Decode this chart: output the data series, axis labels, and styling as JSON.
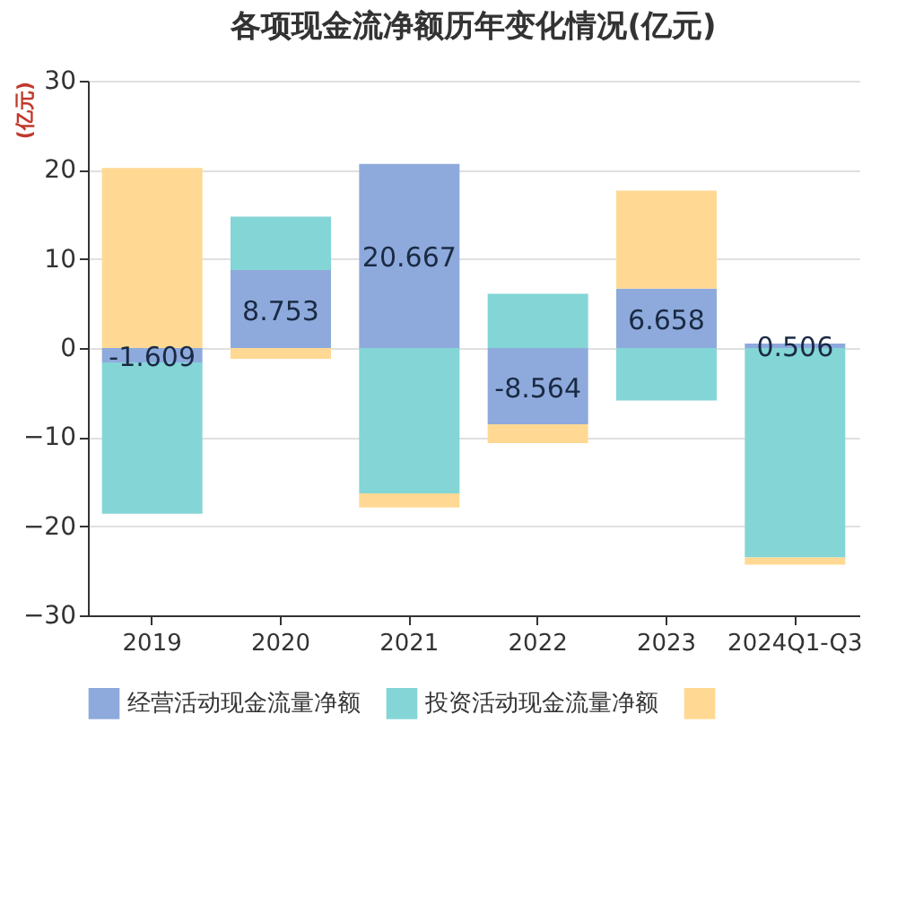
{
  "chart_data": {
    "type": "bar",
    "title": "各项现金流净额历年变化情况(亿元)",
    "ylabel": "(亿元)",
    "stacked": true,
    "categories": [
      "2019",
      "2020",
      "2021",
      "2022",
      "2023",
      "2024Q1-Q3"
    ],
    "series": [
      {
        "name": "经营活动现金流量净额",
        "color": "#8eaadc",
        "values": [
          -1.609,
          8.753,
          20.667,
          -8.564,
          6.658,
          0.506
        ],
        "value_labels": [
          "-1.609",
          "8.753",
          "20.667",
          "-8.564",
          "6.658",
          "0.506"
        ]
      },
      {
        "name": "投资活动现金流量净额",
        "color": "#84d5d6",
        "values": [
          -17.0,
          6.0,
          -16.3,
          6.1,
          -5.9,
          -23.5
        ]
      },
      {
        "color": "#ffd993",
        "values": [
          20.2,
          -1.2,
          -1.6,
          -2.1,
          11.0,
          -0.8
        ]
      }
    ],
    "ylim": [
      -30,
      30
    ],
    "yticks": [
      -30,
      -20,
      -10,
      0,
      10,
      20,
      30
    ],
    "grid": "y",
    "legend": "bottom"
  }
}
